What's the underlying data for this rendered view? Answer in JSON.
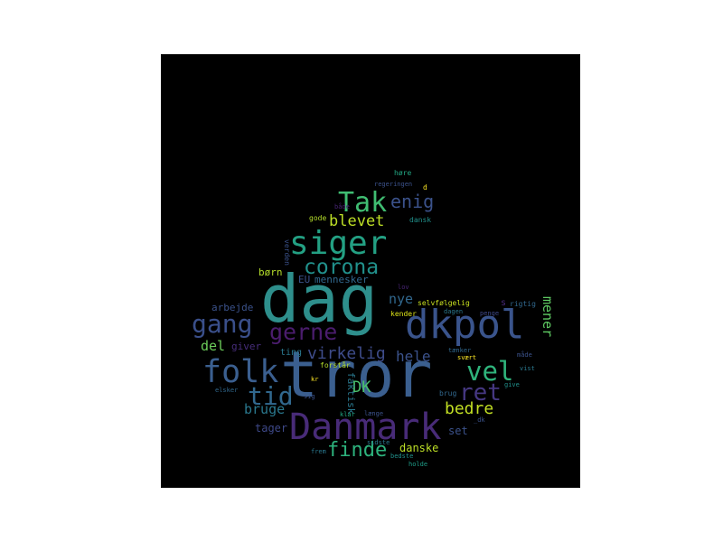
{
  "palette": {
    "background": "#000000",
    "page": "#ffffff"
  },
  "words": [
    {
      "id": "tror",
      "text": "tror",
      "color": "#3b5f8f"
    },
    {
      "id": "dag",
      "text": "dag",
      "color": "#2e8f8c"
    },
    {
      "id": "dkpol",
      "text": "dkpol",
      "color": "#3a548c"
    },
    {
      "id": "danmark",
      "text": "Danmark",
      "color": "#482b78"
    },
    {
      "id": "siger",
      "text": "siger",
      "color": "#23a083"
    },
    {
      "id": "tak",
      "text": "Tak",
      "color": "#40bd72"
    },
    {
      "id": "folk",
      "text": "folk",
      "color": "#3b5f8f"
    },
    {
      "id": "gang",
      "text": "gang",
      "color": "#3a4f8a"
    },
    {
      "id": "corona",
      "text": "corona",
      "color": "#21918c"
    },
    {
      "id": "vel",
      "text": "vel",
      "color": "#2fb47c"
    },
    {
      "id": "ret",
      "text": "ret",
      "color": "#453781"
    },
    {
      "id": "tid",
      "text": "tid",
      "color": "#31688e"
    },
    {
      "id": "enig",
      "text": "enig",
      "color": "#3b528b"
    },
    {
      "id": "gerne",
      "text": "gerne",
      "color": "#4b1d6e"
    },
    {
      "id": "virkelig",
      "text": "virkelig",
      "color": "#3e4c8a"
    },
    {
      "id": "finde",
      "text": "finde",
      "color": "#2db27d"
    },
    {
      "id": "blevet",
      "text": "blevet",
      "color": "#bddf26"
    },
    {
      "id": "bedre",
      "text": "bedre",
      "color": "#c2df23"
    },
    {
      "id": "hele",
      "text": "hele",
      "color": "#3b528b"
    },
    {
      "id": "dk",
      "text": "DK",
      "color": "#4ac16d"
    },
    {
      "id": "nye",
      "text": "nye",
      "color": "#31688e"
    },
    {
      "id": "mener",
      "text": "mener",
      "color": "#5ec962"
    },
    {
      "id": "bruge",
      "text": "bruge",
      "color": "#2a788e"
    },
    {
      "id": "del",
      "text": "del",
      "color": "#6ccd5a"
    },
    {
      "id": "arbejde",
      "text": "arbejde",
      "color": "#3b528b"
    },
    {
      "id": "born",
      "text": "børn",
      "color": "#b5de2b"
    },
    {
      "id": "danske",
      "text": "danske",
      "color": "#bddf26"
    },
    {
      "id": "tager",
      "text": "tager",
      "color": "#3e4989"
    },
    {
      "id": "set",
      "text": "set",
      "color": "#3b528b"
    },
    {
      "id": "faktisk",
      "text": "faktisk",
      "color": "#2a788e"
    },
    {
      "id": "eu",
      "text": "EU",
      "color": "#3b528b"
    },
    {
      "id": "mennesker",
      "text": "mennesker",
      "color": "#31688e"
    },
    {
      "id": "giver",
      "text": "giver",
      "color": "#472d7b"
    },
    {
      "id": "ting",
      "text": "ting",
      "color": "#2a788e"
    },
    {
      "id": "verden",
      "text": "verden",
      "color": "#3b528b"
    },
    {
      "id": "gode",
      "text": "gode",
      "color": "#b5de2b"
    },
    {
      "id": "baade",
      "text": "både",
      "color": "#482475"
    },
    {
      "id": "d",
      "text": "d",
      "color": "#fde725"
    },
    {
      "id": "hore",
      "text": "høre",
      "color": "#22a884"
    },
    {
      "id": "regeringen",
      "text": "regeringen",
      "color": "#3b528b"
    },
    {
      "id": "dansk",
      "text": "dansk",
      "color": "#21918c"
    },
    {
      "id": "lov",
      "text": "lov",
      "color": "#482475"
    },
    {
      "id": "selvfolgelig",
      "text": "selvfølgelig",
      "color": "#c8e020"
    },
    {
      "id": "kender",
      "text": "kender",
      "color": "#dde318"
    },
    {
      "id": "dagen",
      "text": "dagen",
      "color": "#2a788e"
    },
    {
      "id": "rigtig",
      "text": "rigtig",
      "color": "#31688e"
    },
    {
      "id": "penge",
      "text": "penge",
      "color": "#3e4989"
    },
    {
      "id": "s",
      "text": "s",
      "color": "#482878"
    },
    {
      "id": "maade",
      "text": "måde",
      "color": "#3b528b"
    },
    {
      "id": "taenker",
      "text": "tænker",
      "color": "#31688e"
    },
    {
      "id": "svaert",
      "text": "svært",
      "color": "#fde725"
    },
    {
      "id": "forstaar",
      "text": "forstår",
      "color": "#b5de2b"
    },
    {
      "id": "vist",
      "text": "vist",
      "color": "#2a788e"
    },
    {
      "id": "kr",
      "text": "kr",
      "color": "#fde725"
    },
    {
      "id": "elsker",
      "text": "elsker",
      "color": "#31688e"
    },
    {
      "id": "give",
      "text": "give",
      "color": "#21918c"
    },
    {
      "id": "klar",
      "text": "klar",
      "color": "#22a884"
    },
    {
      "id": "laenge",
      "text": "længe",
      "color": "#3b528b"
    },
    {
      "id": "dk_lower",
      "text": "_dk",
      "color": "#3b528b"
    },
    {
      "id": "sidste",
      "text": "sidste",
      "color": "#2a788e"
    },
    {
      "id": "frem",
      "text": "frem",
      "color": "#2a788e"
    },
    {
      "id": "bedste",
      "text": "bedste",
      "color": "#21918c"
    },
    {
      "id": "holde",
      "text": "holde",
      "color": "#1f9e89"
    },
    {
      "id": "brug",
      "text": "brug",
      "color": "#31688e"
    },
    {
      "id": "sig",
      "text": "sig",
      "color": "#3b528b"
    }
  ]
}
